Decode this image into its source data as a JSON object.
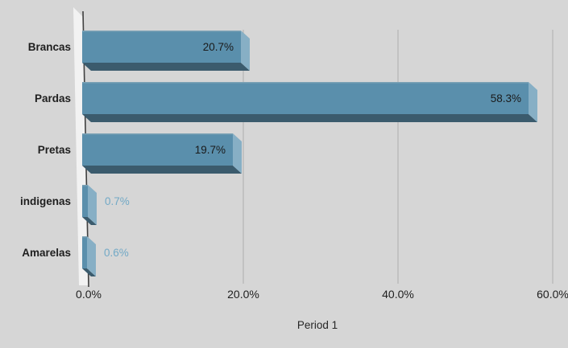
{
  "chart_data": {
    "type": "bar",
    "orientation": "horizontal",
    "style": "3d-excel",
    "title": "",
    "xlabel": "Period 1",
    "ylabel": "",
    "categories": [
      "Brancas",
      "Pardas",
      "Pretas",
      "indigenas",
      "Amarelas"
    ],
    "values": [
      20.7,
      58.3,
      19.7,
      0.7,
      0.6
    ],
    "value_labels": [
      "20.7%",
      "58.3%",
      "19.7%",
      "0.7%",
      "0.6%"
    ],
    "value_label_placement": [
      "inside-end",
      "inside-end",
      "inside-end",
      "outside-end",
      "outside-end"
    ],
    "x_ticks": [
      {
        "value": 0,
        "label": "0.0%"
      },
      {
        "value": 20,
        "label": "20.0%"
      },
      {
        "value": 40,
        "label": "40.0%"
      },
      {
        "value": 60,
        "label": "60.0%"
      }
    ],
    "xlim": [
      0,
      62
    ],
    "grid": "vertical-gridlines",
    "legend": "none",
    "colors": {
      "background": "#d6d6d6",
      "bar_face": "#5a8fac",
      "bar_cap": "#87afc5",
      "bar_bottom": "#3b5b6d",
      "bar_top_edge": "#7ba1b5",
      "value_label_inside": "#1a1a1a",
      "value_label_outside": "#72a9c6",
      "category_label": "#1f1f1f",
      "tick_label": "#1f1f1f",
      "axis_title": "#262626",
      "gridline": "#b5b5b5",
      "wall": "#f2f2f2",
      "axis_line": "#404040"
    }
  }
}
